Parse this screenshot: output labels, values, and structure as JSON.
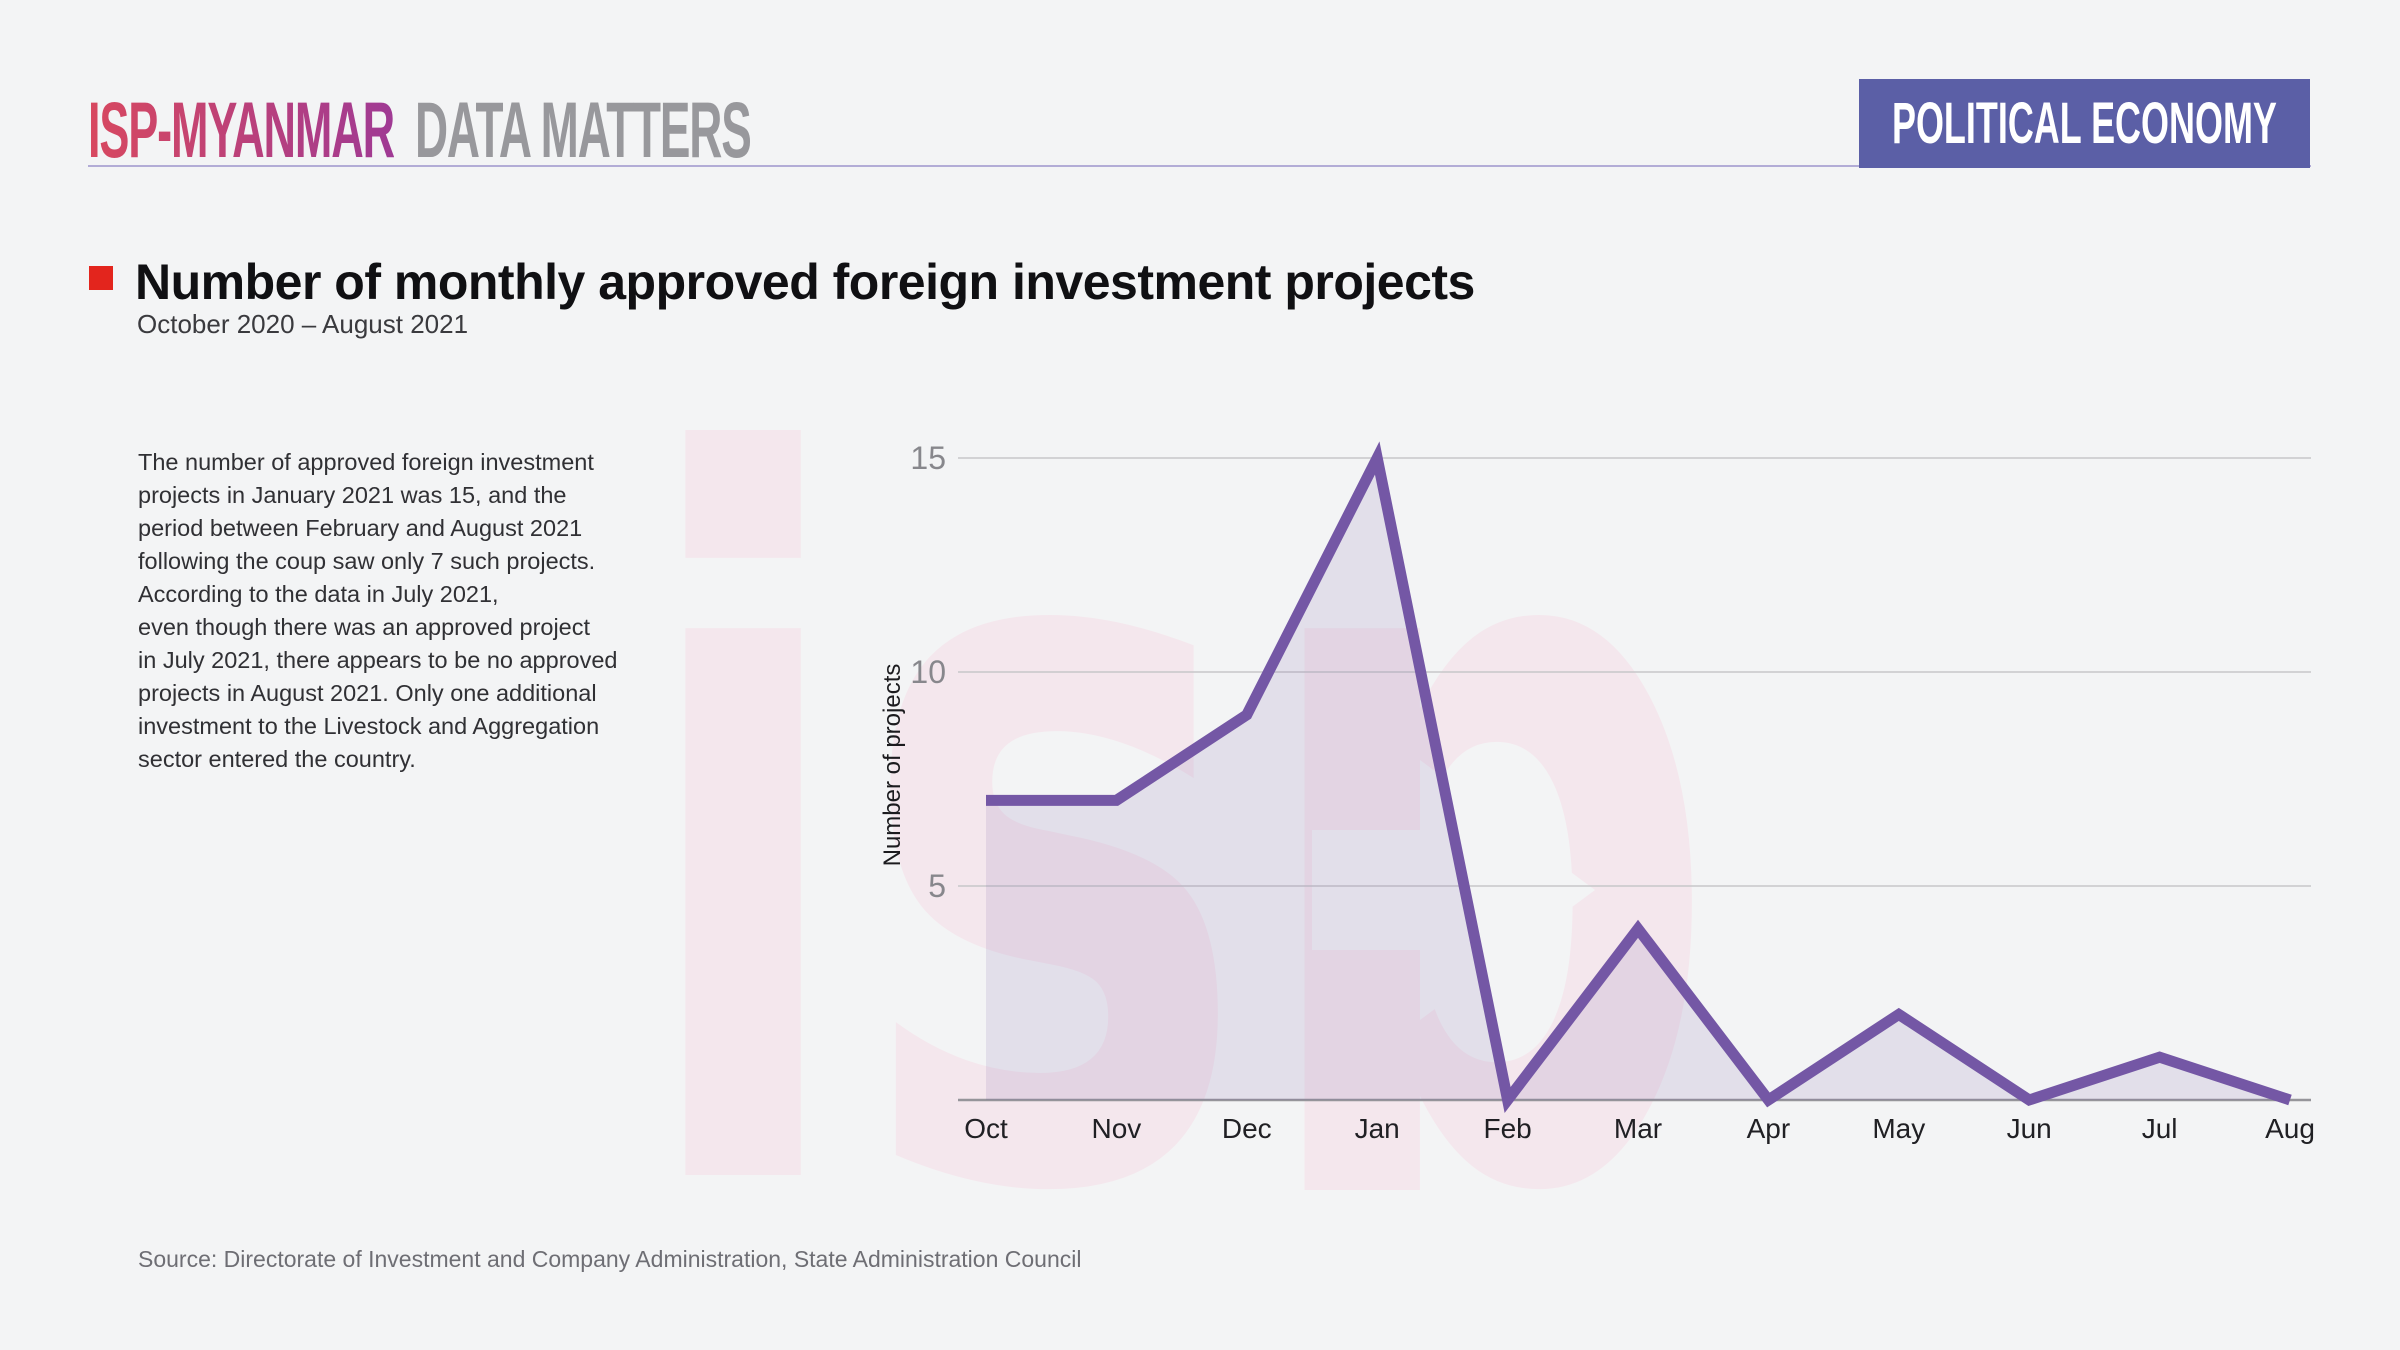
{
  "header": {
    "brand_primary": "ISP-MYANMAR",
    "brand_secondary": "DATA MATTERS",
    "badge": "POLITICAL ECONOMY"
  },
  "title": {
    "text": "Number of monthly approved foreign investment projects",
    "subtitle": "October 2020 – August 2021"
  },
  "commentary": {
    "text": "The number of approved foreign investment\nprojects in January 2021 was 15, and the\nperiod between February and August 2021\nfollowing the coup saw only 7 such projects.\nAccording to the data in July 2021,\neven though there was an approved project\nin July 2021, there appears to be no approved\nprojects in August 2021. Only one additional\ninvestment to the Livestock and Aggregation\nsector entered the country."
  },
  "chart_data": {
    "type": "area",
    "categories": [
      "Oct",
      "Nov",
      "Dec",
      "Jan",
      "Feb",
      "Mar",
      "Apr",
      "May",
      "Jun",
      "Jul",
      "Aug"
    ],
    "values": [
      7,
      7,
      9,
      15,
      0,
      4,
      0,
      2,
      0,
      1,
      0
    ],
    "title": "Number of monthly approved foreign investment projects",
    "xlabel": "",
    "ylabel": "Number of projects",
    "yticks": [
      5,
      10,
      15
    ],
    "ylim": [
      0,
      15
    ],
    "grid": true,
    "legend": false,
    "line_color": "#7457a5",
    "fill_color": "rgba(114,87,165,0.13)"
  },
  "watermark": {
    "text": "isp",
    "color": "#f4e7ed"
  },
  "source": {
    "text": "Source: Directorate of Investment and Company Administration, State Administration Council"
  },
  "colors": {
    "background": "#f3f4f5",
    "brand_gradient_start": "#d8485f",
    "brand_gradient_end": "#9f3a94",
    "brand_secondary_text": "#98989c",
    "badge_bg": "#5b5fa6",
    "badge_text": "#ffffff",
    "header_rule": "#b2acd6",
    "title_bullet": "#e3251d",
    "line": "#7457a5"
  }
}
